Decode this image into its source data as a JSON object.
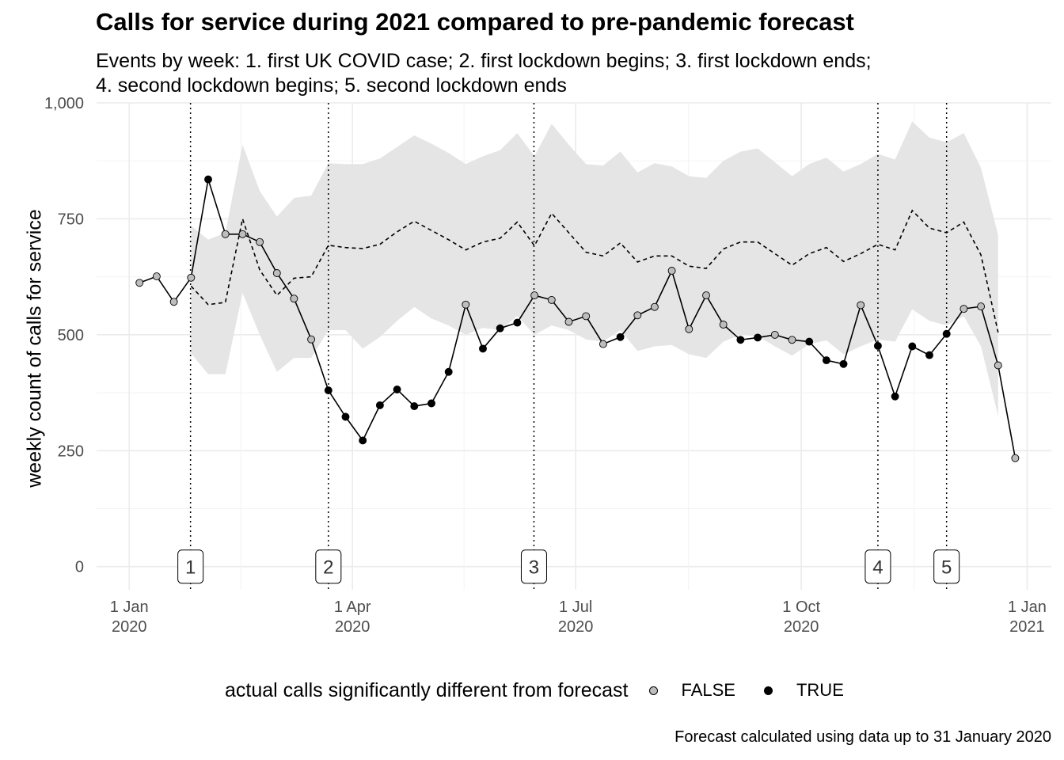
{
  "chart_data": {
    "type": "line",
    "title": "Calls for service during 2021 compared to pre-pandemic forecast",
    "subtitle": "Events by week: 1. first UK COVID case; 2. first lockdown begins; 3. first lockdown ends; 4. second lockdown begins; 5. second lockdown ends",
    "ylabel": "weekly count of calls for service",
    "xlabel": "",
    "caption": "Forecast calculated using data up to 31 January 2020",
    "ylim": [
      -50,
      1000
    ],
    "y_ticks": [
      0,
      250,
      500,
      750,
      1000
    ],
    "y_tick_labels": [
      "0",
      "250",
      "500",
      "750",
      "1,000"
    ],
    "x_ticks": [
      {
        "week": 0,
        "line1": "1 Jan",
        "line2": "2020"
      },
      {
        "week": 13,
        "line1": "1 Apr",
        "line2": "2020"
      },
      {
        "week": 26,
        "line1": "1 Jul",
        "line2": "2020"
      },
      {
        "week": 39.14,
        "line1": "1 Oct",
        "line2": "2020"
      },
      {
        "week": 52.29,
        "line1": "1 Jan",
        "line2": "2021"
      }
    ],
    "x_range": [
      -1.9,
      53.7
    ],
    "events": [
      {
        "label": "1",
        "week": 3.57,
        "name": "first UK COVID case"
      },
      {
        "label": "2",
        "week": 11.6,
        "name": "first lockdown begins"
      },
      {
        "label": "3",
        "week": 23.57,
        "name": "first lockdown ends"
      },
      {
        "label": "4",
        "week": 43.6,
        "name": "second lockdown begins"
      },
      {
        "label": "5",
        "week": 47.6,
        "name": "second lockdown ends"
      }
    ],
    "legend_title": "actual calls significantly different from forecast",
    "legend_entries": [
      {
        "label": "FALSE",
        "fill": "#bdbdbd"
      },
      {
        "label": "TRUE",
        "fill": "#000000"
      }
    ],
    "actual_series": {
      "name": "actual calls",
      "x": [
        0.6,
        1.6,
        2.6,
        3.6,
        4.6,
        5.6,
        6.6,
        7.6,
        8.6,
        9.6,
        10.6,
        11.6,
        12.6,
        13.6,
        14.6,
        15.6,
        16.6,
        17.6,
        18.6,
        19.6,
        20.6,
        21.6,
        22.6,
        23.6,
        24.6,
        25.6,
        26.6,
        27.6,
        28.6,
        29.6,
        30.6,
        31.6,
        32.6,
        33.6,
        34.6,
        35.6,
        36.6,
        37.6,
        38.6,
        39.6,
        40.6,
        41.6,
        42.6,
        43.6,
        44.6,
        45.6,
        46.6,
        47.6,
        48.6,
        49.6,
        50.6,
        51.6
      ],
      "y": [
        612,
        626,
        571,
        623,
        835,
        717,
        717,
        700,
        633,
        578,
        490,
        380,
        323,
        272,
        348,
        382,
        346,
        352,
        420,
        565,
        470,
        514,
        526,
        585,
        575,
        528,
        540,
        480,
        495,
        542,
        560,
        638,
        512,
        585,
        522,
        489,
        494,
        500,
        489,
        485,
        445,
        437,
        564,
        476,
        367,
        475,
        456,
        502,
        556,
        561,
        434,
        234
      ],
      "significant": [
        false,
        false,
        false,
        false,
        true,
        false,
        false,
        false,
        false,
        false,
        false,
        true,
        true,
        true,
        true,
        true,
        true,
        true,
        true,
        false,
        true,
        true,
        true,
        false,
        false,
        false,
        false,
        false,
        true,
        false,
        false,
        false,
        false,
        false,
        false,
        true,
        true,
        false,
        false,
        true,
        true,
        true,
        false,
        true,
        true,
        true,
        true,
        true,
        false,
        false,
        false,
        false
      ]
    },
    "forecast_series": {
      "name": "forecast",
      "x": [
        3.6,
        4.6,
        5.6,
        6.6,
        7.6,
        8.6,
        9.6,
        10.6,
        11.6,
        12.6,
        13.6,
        14.6,
        15.6,
        16.6,
        17.6,
        18.6,
        19.6,
        20.6,
        21.6,
        22.6,
        23.6,
        24.6,
        25.6,
        26.6,
        27.6,
        28.6,
        29.6,
        30.6,
        31.6,
        32.6,
        33.6,
        34.6,
        35.6,
        36.6,
        37.6,
        38.6,
        39.6,
        40.6,
        41.6,
        42.6,
        43.6,
        44.6,
        45.6,
        46.6,
        47.6,
        48.6,
        49.6,
        50.6
      ],
      "y": [
        605,
        565,
        570,
        750,
        640,
        585,
        622,
        625,
        693,
        688,
        686,
        695,
        722,
        745,
        725,
        705,
        683,
        700,
        708,
        743,
        692,
        762,
        720,
        678,
        670,
        698,
        657,
        670,
        670,
        648,
        643,
        685,
        700,
        700,
        675,
        650,
        675,
        688,
        658,
        675,
        695,
        683,
        768,
        730,
        720,
        743,
        672,
        505
      ],
      "lower": [
        460,
        415,
        415,
        590,
        500,
        420,
        450,
        450,
        510,
        510,
        470,
        495,
        530,
        560,
        535,
        520,
        500,
        515,
        510,
        540,
        500,
        520,
        510,
        490,
        485,
        510,
        465,
        475,
        478,
        458,
        450,
        485,
        500,
        497,
        475,
        455,
        480,
        488,
        458,
        475,
        490,
        485,
        555,
        530,
        520,
        540,
        475,
        325
      ],
      "upper": [
        735,
        705,
        720,
        910,
        810,
        755,
        795,
        800,
        870,
        868,
        868,
        880,
        905,
        930,
        912,
        892,
        868,
        885,
        898,
        935,
        885,
        955,
        910,
        868,
        865,
        895,
        850,
        870,
        863,
        842,
        838,
        875,
        895,
        902,
        872,
        842,
        868,
        882,
        852,
        868,
        890,
        878,
        960,
        925,
        915,
        935,
        860,
        715
      ]
    }
  }
}
